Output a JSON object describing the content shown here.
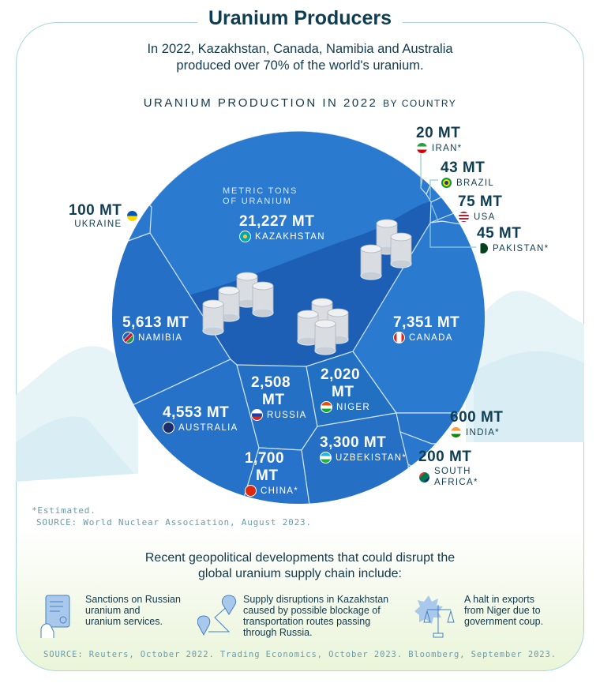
{
  "header": {
    "title": "Uranium Producers",
    "subtitle_line1": "In 2022, Kazakhstan, Canada, Namibia and Australia",
    "subtitle_line2": "produced over 70% of the world's uranium."
  },
  "chart_data": {
    "type": "voronoi-treemap",
    "title": "URANIUM PRODUCTION IN 2022",
    "title_suffix": "BY COUNTRY",
    "unit_note_line1": "METRIC TONS",
    "unit_note_line2": "OF URANIUM",
    "items": [
      {
        "country": "KAZAKHSTAN",
        "value": 21227,
        "label": "21,227 MT",
        "estimated": false
      },
      {
        "country": "CANADA",
        "value": 7351,
        "label": "7,351 MT",
        "estimated": false
      },
      {
        "country": "NAMIBIA",
        "value": 5613,
        "label": "5,613 MT",
        "estimated": false
      },
      {
        "country": "AUSTRALIA",
        "value": 4553,
        "label": "4,553 MT",
        "estimated": false
      },
      {
        "country": "UZBEKISTAN*",
        "value": 3300,
        "label": "3,300 MT",
        "estimated": true
      },
      {
        "country": "RUSSIA",
        "value": 2508,
        "label_a": "2,508",
        "label_b": "MT",
        "estimated": false
      },
      {
        "country": "NIGER",
        "value": 2020,
        "label_a": "2,020",
        "label_b": "MT",
        "estimated": false
      },
      {
        "country": "CHINA*",
        "value": 1700,
        "label_a": "1,700",
        "label_b": "MT",
        "estimated": true
      },
      {
        "country": "INDIA*",
        "value": 600,
        "label": "600 MT",
        "estimated": true
      },
      {
        "country": "SOUTH AFRICA*",
        "value": 200,
        "label": "200 MT",
        "country_a": "SOUTH",
        "country_b": "AFRICA*",
        "estimated": true
      },
      {
        "country": "UKRAINE",
        "value": 100,
        "label": "100 MT",
        "estimated": false
      },
      {
        "country": "USA",
        "value": 75,
        "label": "75 MT",
        "estimated": false
      },
      {
        "country": "PAKISTAN*",
        "value": 45,
        "label": "45 MT",
        "estimated": true
      },
      {
        "country": "BRAZIL",
        "value": 43,
        "label": "43 MT",
        "estimated": false
      },
      {
        "country": "IRAN*",
        "value": 20,
        "label": "20 MT",
        "estimated": true
      }
    ],
    "colors": {
      "cell": "#2a7ad0",
      "cell_dark": "#1e5fb6",
      "border": "#cfe3f6"
    }
  },
  "notes": {
    "estimated": "*Estimated.",
    "source": "SOURCE: World Nuclear Association, August 2023."
  },
  "developments": {
    "title_line1": "Recent geopolitical developments that could disrupt the",
    "title_line2": "global uranium supply chain include:",
    "items": [
      {
        "icon": "sanctions-document-icon",
        "l1": "Sanctions on Russian",
        "l2": "uranium and",
        "l3": "uranium services."
      },
      {
        "icon": "route-map-pin-icon",
        "l1": "Supply disruptions in Kazakhstan",
        "l2": "caused by possible blockage of",
        "l3": "transportation routes passing",
        "l4": "through Russia."
      },
      {
        "icon": "justice-scales-icon",
        "l1": "A halt in exports",
        "l2": "from Niger due to",
        "l3": "government coup."
      }
    ],
    "source": "SOURCE: Reuters, October 2022. Trading Economics, October 2023. Bloomberg, September 2023."
  }
}
